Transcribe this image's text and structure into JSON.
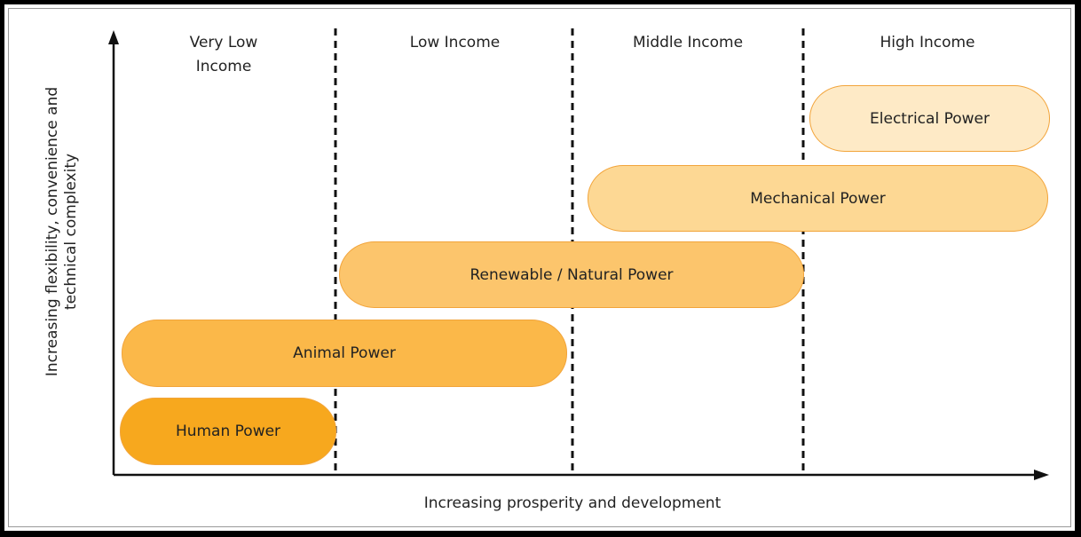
{
  "columns": [
    "Very Low Income",
    "Low Income",
    "Middle Income",
    "High Income"
  ],
  "bars": [
    "Human Power",
    "Animal Power",
    "Renewable / Natural Power",
    "Mechanical Power",
    "Electrical Power"
  ],
  "x_axis_label": "Increasing prosperity and development",
  "y_axis_label": "Increasing flexibility, convenience and technical complexity"
}
